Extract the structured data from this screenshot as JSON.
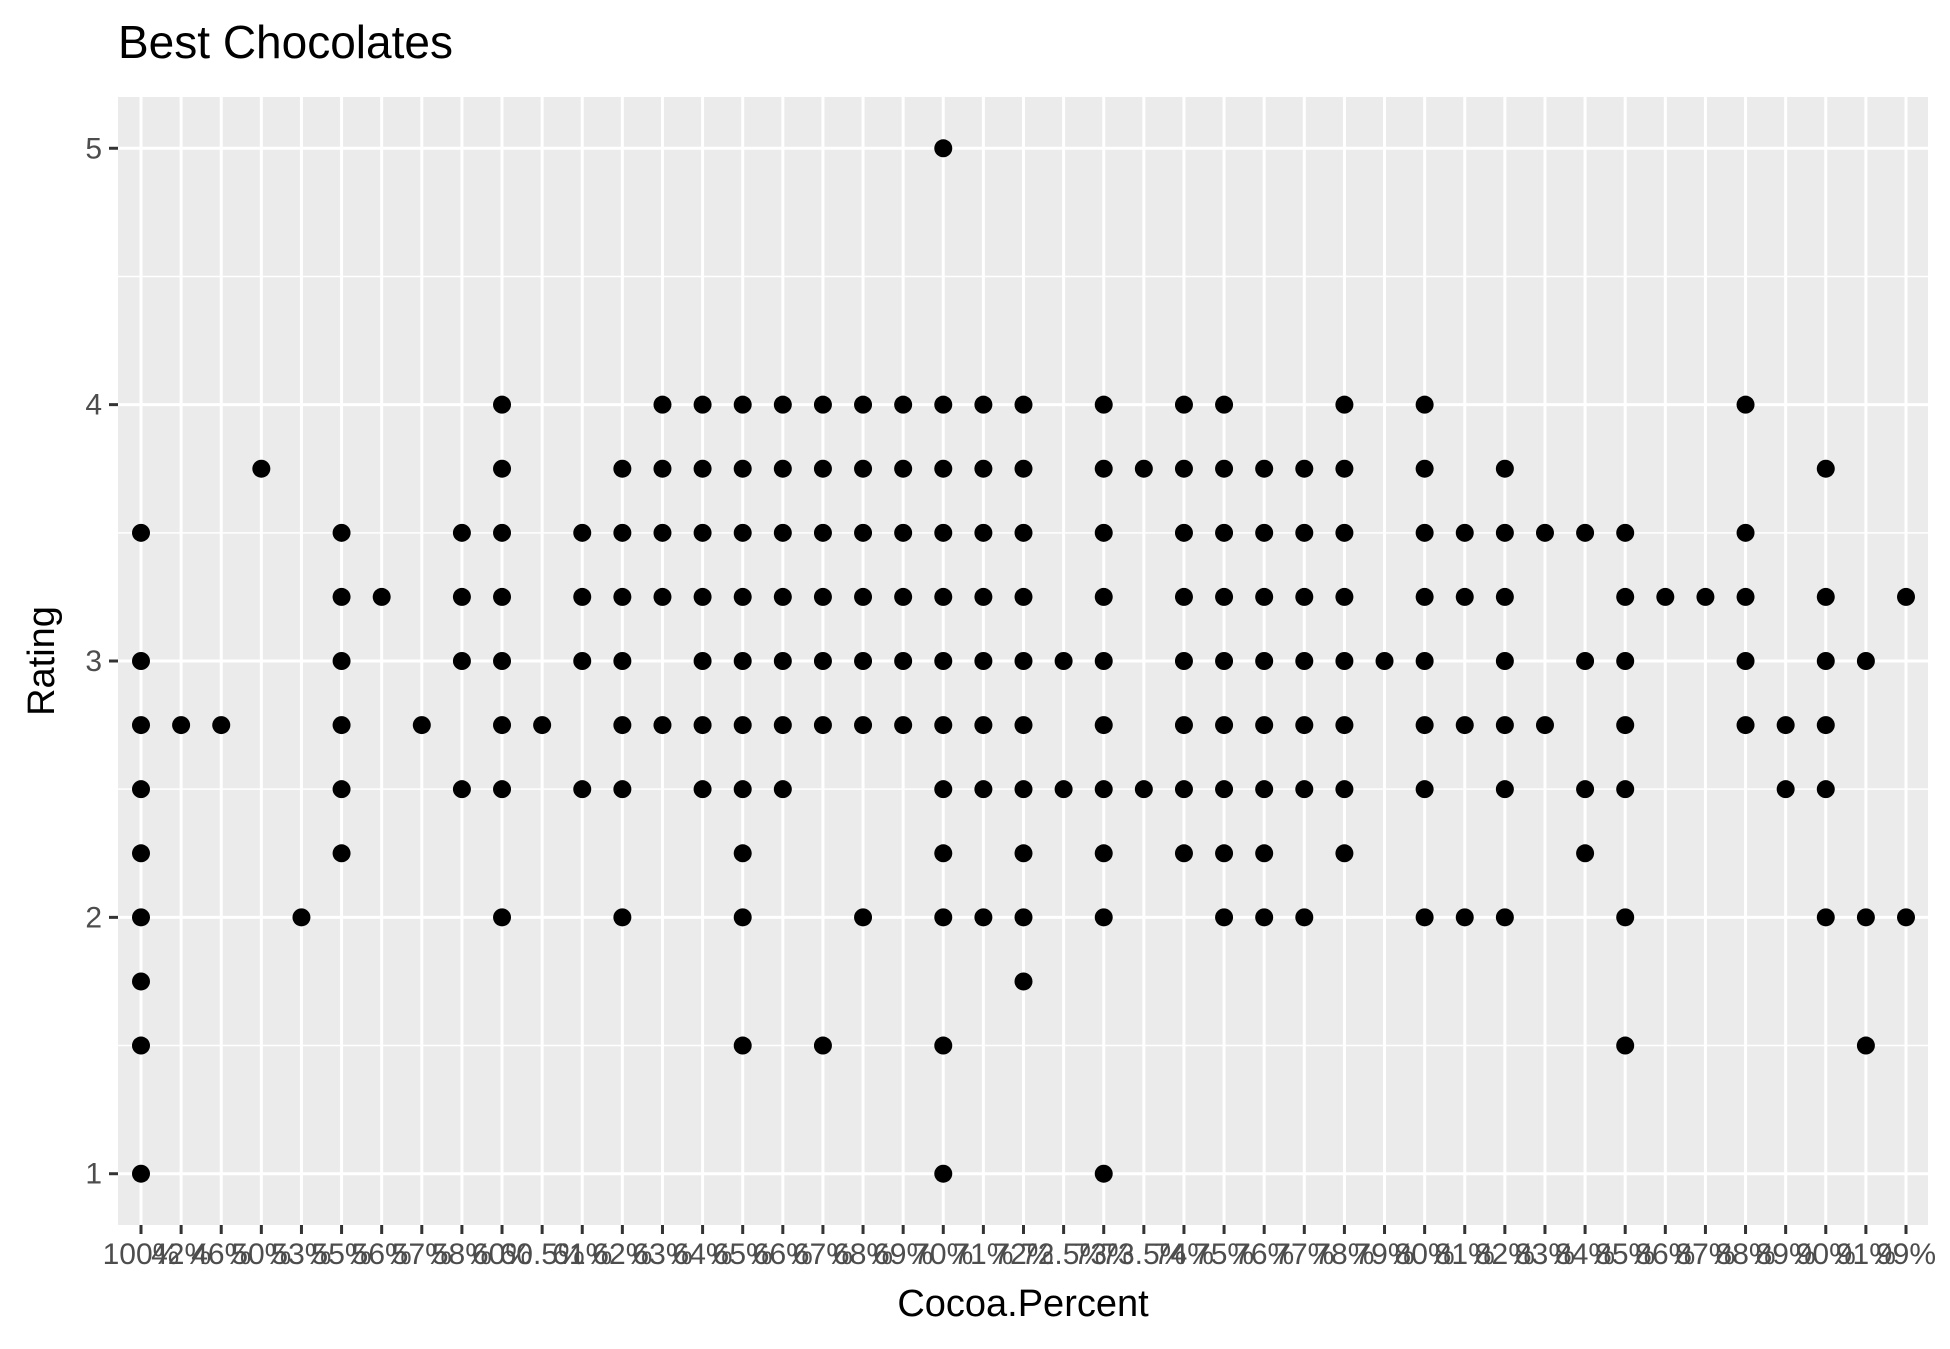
{
  "chart_data": {
    "type": "scatter",
    "title": "Best Chocolates",
    "xlabel": "Cocoa.Percent",
    "ylabel": "Rating",
    "x_categories": [
      "100%",
      "42%",
      "46%",
      "50%",
      "53%",
      "55%",
      "56%",
      "57%",
      "58%",
      "60%",
      "60.5%",
      "61%",
      "62%",
      "63%",
      "64%",
      "65%",
      "66%",
      "67%",
      "68%",
      "69%",
      "70%",
      "71%",
      "72%",
      "72.5%",
      "73%",
      "73.5%",
      "74%",
      "75%",
      "76%",
      "77%",
      "78%",
      "79%",
      "80%",
      "81%",
      "82%",
      "83%",
      "84%",
      "85%",
      "86%",
      "87%",
      "88%",
      "89%",
      "90%",
      "91%",
      "99%"
    ],
    "y_ticks": [
      1,
      2,
      3,
      4,
      5
    ],
    "ylim": [
      0.8,
      5.2
    ],
    "grid": true,
    "point_color": "#000000",
    "panel_background": "#ebebeb",
    "grid_color": "#ffffff",
    "points": [
      {
        "x": "100%",
        "y": [
          1,
          1.5,
          1.75,
          2,
          2.25,
          2.5,
          2.75,
          3,
          3.5
        ]
      },
      {
        "x": "42%",
        "y": [
          2.75
        ]
      },
      {
        "x": "46%",
        "y": [
          2.75
        ]
      },
      {
        "x": "50%",
        "y": [
          3.75
        ]
      },
      {
        "x": "53%",
        "y": [
          2
        ]
      },
      {
        "x": "55%",
        "y": [
          2.25,
          2.5,
          2.75,
          3,
          3.25,
          3.5
        ]
      },
      {
        "x": "56%",
        "y": [
          3.25
        ]
      },
      {
        "x": "57%",
        "y": [
          2.75
        ]
      },
      {
        "x": "58%",
        "y": [
          2.5,
          3,
          3.25,
          3.5
        ]
      },
      {
        "x": "60%",
        "y": [
          2,
          2.5,
          2.75,
          3,
          3.25,
          3.5,
          3.75,
          4
        ]
      },
      {
        "x": "60.5%",
        "y": [
          2.75
        ]
      },
      {
        "x": "61%",
        "y": [
          2.5,
          3,
          3.25,
          3.5
        ]
      },
      {
        "x": "62%",
        "y": [
          2,
          2.5,
          2.75,
          3,
          3.25,
          3.5,
          3.75
        ]
      },
      {
        "x": "63%",
        "y": [
          2.75,
          3.25,
          3.5,
          3.75,
          4
        ]
      },
      {
        "x": "64%",
        "y": [
          2.5,
          2.75,
          3,
          3.25,
          3.5,
          3.75,
          4
        ]
      },
      {
        "x": "65%",
        "y": [
          1.5,
          2,
          2.25,
          2.5,
          2.75,
          3,
          3.25,
          3.5,
          3.75,
          4
        ]
      },
      {
        "x": "66%",
        "y": [
          2.5,
          2.75,
          3,
          3.25,
          3.5,
          3.75,
          4
        ]
      },
      {
        "x": "67%",
        "y": [
          1.5,
          2.75,
          3,
          3.25,
          3.5,
          3.75,
          4
        ]
      },
      {
        "x": "68%",
        "y": [
          2,
          2.75,
          3,
          3.25,
          3.5,
          3.75,
          4
        ]
      },
      {
        "x": "69%",
        "y": [
          2.75,
          3,
          3.25,
          3.5,
          3.75,
          4
        ]
      },
      {
        "x": "70%",
        "y": [
          1,
          1.5,
          2,
          2.25,
          2.5,
          2.75,
          3,
          3.25,
          3.5,
          3.75,
          4,
          5
        ]
      },
      {
        "x": "71%",
        "y": [
          2,
          2.5,
          2.75,
          3,
          3.25,
          3.5,
          3.75,
          4
        ]
      },
      {
        "x": "72%",
        "y": [
          1.75,
          2,
          2.25,
          2.5,
          2.75,
          3,
          3.25,
          3.5,
          3.75,
          4
        ]
      },
      {
        "x": "72.5%",
        "y": [
          2.5,
          3
        ]
      },
      {
        "x": "73%",
        "y": [
          1,
          2,
          2.25,
          2.5,
          2.75,
          3,
          3.25,
          3.5,
          3.75,
          4
        ]
      },
      {
        "x": "73.5%",
        "y": [
          2.5,
          3.75
        ]
      },
      {
        "x": "74%",
        "y": [
          2.25,
          2.5,
          2.75,
          3,
          3.25,
          3.5,
          3.75,
          4
        ]
      },
      {
        "x": "75%",
        "y": [
          2,
          2.25,
          2.5,
          2.75,
          3,
          3.25,
          3.5,
          3.75,
          4
        ]
      },
      {
        "x": "76%",
        "y": [
          2,
          2.25,
          2.5,
          2.75,
          3,
          3.25,
          3.5,
          3.75
        ]
      },
      {
        "x": "77%",
        "y": [
          2,
          2.5,
          2.75,
          3,
          3.25,
          3.5,
          3.75
        ]
      },
      {
        "x": "78%",
        "y": [
          2.25,
          2.5,
          2.75,
          3,
          3.25,
          3.5,
          3.75,
          4
        ]
      },
      {
        "x": "79%",
        "y": [
          3
        ]
      },
      {
        "x": "80%",
        "y": [
          2,
          2.5,
          2.75,
          3,
          3.25,
          3.5,
          3.75,
          4
        ]
      },
      {
        "x": "81%",
        "y": [
          2,
          2.75,
          3.25,
          3.5
        ]
      },
      {
        "x": "82%",
        "y": [
          2,
          2.5,
          2.75,
          3,
          3.25,
          3.5,
          3.75
        ]
      },
      {
        "x": "83%",
        "y": [
          2.75,
          3.5
        ]
      },
      {
        "x": "84%",
        "y": [
          2.25,
          2.5,
          3,
          3.5
        ]
      },
      {
        "x": "85%",
        "y": [
          1.5,
          2,
          2.5,
          2.75,
          3,
          3.25,
          3.5
        ]
      },
      {
        "x": "86%",
        "y": [
          3.25
        ]
      },
      {
        "x": "87%",
        "y": [
          3.25
        ]
      },
      {
        "x": "88%",
        "y": [
          2.75,
          3,
          3.25,
          3.5,
          4
        ]
      },
      {
        "x": "89%",
        "y": [
          2.5,
          2.75
        ]
      },
      {
        "x": "90%",
        "y": [
          2,
          2.5,
          2.75,
          3,
          3.25,
          3.75
        ]
      },
      {
        "x": "91%",
        "y": [
          1.5,
          2,
          3
        ]
      },
      {
        "x": "99%",
        "y": [
          2,
          3.25
        ]
      }
    ]
  }
}
